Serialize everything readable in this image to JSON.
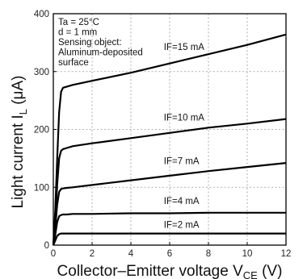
{
  "chart_data": {
    "type": "line",
    "title": "",
    "xlabel": "Collector–Emitter voltage V",
    "xlabel_sub": "CE",
    "xlabel_unit": " (V)",
    "ylabel": "Light current  I",
    "ylabel_sub": "L",
    "ylabel_unit": " (μA)",
    "xlim": [
      0,
      12
    ],
    "ylim": [
      0,
      400
    ],
    "xticks": [
      0,
      2,
      4,
      6,
      8,
      10,
      12
    ],
    "yticks": [
      0,
      100,
      200,
      300,
      400
    ],
    "grid": true,
    "conditions": [
      "Ta = 25°C",
      "d = 1 mm",
      "Sensing object:",
      "Aluminum-deposited",
      "surface"
    ],
    "series": [
      {
        "name": "IF=15 mA",
        "x": [
          0,
          0.1,
          0.2,
          0.3,
          0.4,
          0.5,
          0.7,
          1.0,
          2,
          4,
          6,
          8,
          10,
          12
        ],
        "y": [
          0,
          60,
          150,
          230,
          265,
          272,
          274,
          277,
          284,
          298,
          314,
          330,
          346,
          364
        ]
      },
      {
        "name": "IF=10 mA",
        "x": [
          0,
          0.1,
          0.2,
          0.3,
          0.4,
          0.5,
          0.7,
          1.0,
          2,
          4,
          6,
          8,
          10,
          12
        ],
        "y": [
          0,
          40,
          105,
          150,
          163,
          166,
          168,
          171,
          176,
          185,
          194,
          203,
          210,
          218
        ]
      },
      {
        "name": "IF=7 mA",
        "x": [
          0,
          0.1,
          0.2,
          0.3,
          0.4,
          0.5,
          0.7,
          1.0,
          2,
          4,
          6,
          8,
          10,
          12
        ],
        "y": [
          0,
          30,
          70,
          92,
          97,
          98,
          99,
          100,
          104,
          112,
          120,
          128,
          135,
          142
        ]
      },
      {
        "name": "IF=4 mA",
        "x": [
          0,
          0.1,
          0.2,
          0.3,
          0.4,
          0.5,
          0.7,
          1.0,
          2,
          4,
          6,
          8,
          10,
          12
        ],
        "y": [
          0,
          18,
          40,
          50,
          52,
          53,
          53,
          54,
          54,
          55,
          55,
          56,
          56,
          56
        ]
      },
      {
        "name": "IF=2 mA",
        "x": [
          0,
          0.1,
          0.2,
          0.3,
          0.4,
          0.5,
          0.7,
          1.0,
          2,
          4,
          6,
          8,
          10,
          12
        ],
        "y": [
          0,
          8,
          16,
          19,
          20,
          20,
          20,
          20,
          20,
          20,
          20,
          20,
          20,
          20
        ]
      }
    ],
    "label_positions": [
      {
        "name": "IF=15 mA",
        "x": 5.7,
        "y": 337
      },
      {
        "name": "IF=10 mA",
        "x": 5.7,
        "y": 215
      },
      {
        "name": "IF=7 mA",
        "x": 5.7,
        "y": 140
      },
      {
        "name": "IF=4 mA",
        "x": 5.7,
        "y": 71
      },
      {
        "name": "IF=2 mA",
        "x": 5.7,
        "y": 30
      }
    ]
  }
}
